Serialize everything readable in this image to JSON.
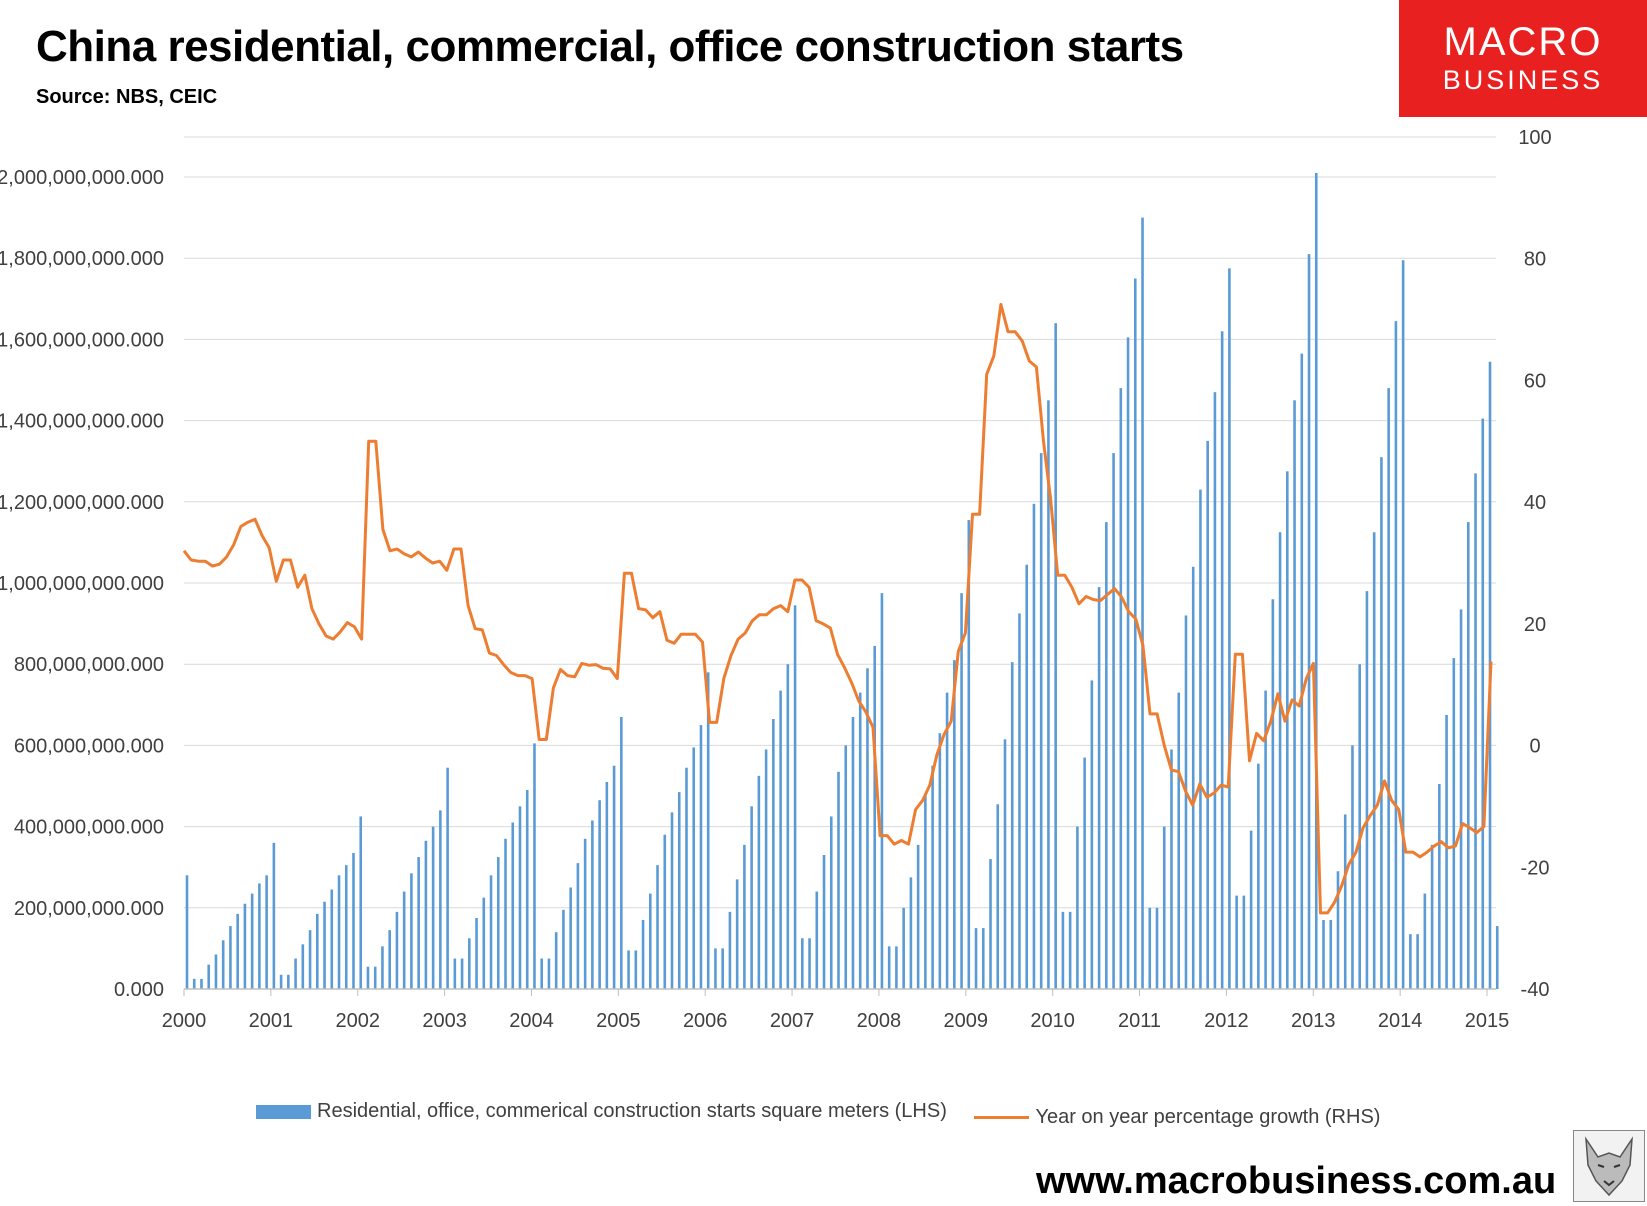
{
  "title": "China residential, commercial, office construction starts",
  "source": "Source: NBS, CEIC",
  "logo": {
    "line1": "MACRO",
    "line2": "BUSINESS"
  },
  "website": "www.macrobusiness.com.au",
  "colors": {
    "bars": "#5b9bd5",
    "line": "#ed7d31",
    "grid": "#d9d9d9",
    "logo_bg": "#e8201f"
  },
  "chart_data": {
    "type": "bar+line",
    "title": "China residential, commercial, office construction starts",
    "x_tick_labels": [
      "2000",
      "2001",
      "2002",
      "2003",
      "2004",
      "2005",
      "2006",
      "2007",
      "2008",
      "2009",
      "2010",
      "2011",
      "2012",
      "2013",
      "2014",
      "2015"
    ],
    "left_axis": {
      "label": "square meters",
      "ylim": [
        0,
        2000000000
      ],
      "tick_labels": [
        "0.000",
        "200,000,000.000",
        "400,000,000.000",
        "600,000,000.000",
        "800,000,000.000",
        "1,000,000,000.000",
        "1,200,000,000.000",
        "1,400,000,000.000",
        "1,600,000,000.000",
        "1,800,000,000.000",
        "2,000,000,000.000"
      ]
    },
    "right_axis": {
      "label": "percent",
      "ylim": [
        -40,
        100
      ],
      "tick_labels": [
        "-40",
        "-20",
        "0",
        "20",
        "40",
        "60",
        "80",
        "100"
      ]
    },
    "grid": true,
    "legend_position": "bottom",
    "series": [
      {
        "name": "Residential, office, commerical construction starts square meters (LHS)",
        "type": "bar",
        "axis": "left",
        "start": "2000-01",
        "frequency": "monthly",
        "values_millions": [
          280,
          25,
          25,
          60,
          85,
          120,
          155,
          185,
          210,
          235,
          260,
          280,
          360,
          35,
          35,
          75,
          110,
          145,
          185,
          215,
          245,
          280,
          305,
          335,
          425,
          55,
          55,
          105,
          145,
          190,
          240,
          285,
          325,
          365,
          400,
          440,
          545,
          75,
          75,
          125,
          175,
          225,
          280,
          325,
          370,
          410,
          450,
          490,
          605,
          75,
          75,
          140,
          195,
          250,
          310,
          370,
          415,
          465,
          510,
          550,
          670,
          95,
          95,
          170,
          235,
          305,
          380,
          435,
          485,
          545,
          595,
          650,
          780,
          100,
          100,
          190,
          270,
          355,
          450,
          525,
          590,
          665,
          735,
          800,
          945,
          125,
          125,
          240,
          330,
          425,
          535,
          600,
          670,
          730,
          790,
          845,
          975,
          105,
          105,
          200,
          275,
          355,
          480,
          550,
          630,
          730,
          810,
          975,
          1155,
          150,
          150,
          320,
          455,
          615,
          805,
          925,
          1045,
          1195,
          1320,
          1450,
          1640,
          190,
          190,
          400,
          570,
          760,
          990,
          1150,
          1320,
          1480,
          1605,
          1750,
          1900,
          200,
          200,
          400,
          590,
          730,
          920,
          1040,
          1230,
          1350,
          1470,
          1620,
          1775,
          230,
          230,
          390,
          555,
          735,
          960,
          1125,
          1275,
          1450,
          1565,
          1810,
          2010,
          170,
          170,
          290,
          430,
          600,
          800,
          980,
          1125,
          1310,
          1480,
          1645,
          1795,
          135,
          135,
          235,
          355,
          505,
          675,
          815,
          935,
          1150,
          1270,
          1405,
          1545,
          155
        ]
      },
      {
        "name": "Year on year percentage growth (RHS)",
        "type": "line",
        "axis": "right",
        "start": "2000-01",
        "frequency": "monthly",
        "values": [
          32,
          30.5,
          30.3,
          30.3,
          29.5,
          29.8,
          31,
          33,
          36,
          36.7,
          37.2,
          34.5,
          32.5,
          27,
          30.5,
          30.5,
          26,
          28,
          22.5,
          20,
          18,
          17.5,
          18.7,
          20.2,
          19.5,
          17.5,
          50,
          50,
          35.5,
          32,
          32.3,
          31.5,
          31,
          31.8,
          30.8,
          30,
          30.3,
          28.8,
          32.3,
          32.3,
          23,
          19.2,
          19,
          15.2,
          14.8,
          13.3,
          12,
          11.5,
          11.5,
          11,
          1,
          1,
          9.5,
          12.5,
          11.5,
          11.3,
          13.5,
          13.2,
          13.3,
          12.7,
          12.6,
          11,
          28.3,
          28.3,
          22.5,
          22.3,
          21,
          22,
          17.3,
          16.8,
          18.3,
          18.3,
          18.3,
          17,
          3.8,
          3.8,
          11,
          14.8,
          17.5,
          18.5,
          20.5,
          21.5,
          21.5,
          22.5,
          23,
          22,
          27.2,
          27.2,
          26,
          20.5,
          20,
          19.3,
          15,
          12.8,
          10.3,
          7.3,
          5.5,
          3,
          -14.8,
          -14.8,
          -16.2,
          -15.6,
          -16.2,
          -10.5,
          -9,
          -6.5,
          -1.5,
          1.8,
          4,
          15.5,
          18.5,
          38,
          38,
          61,
          64,
          72.5,
          68,
          68,
          66.5,
          63.2,
          62.2,
          50,
          40.5,
          28,
          28,
          26,
          23.3,
          24.5,
          24,
          23.8,
          24.8,
          25.8,
          24.4,
          22,
          20.8,
          16.5,
          5.2,
          5.2,
          0,
          -4,
          -4.3,
          -7.5,
          -9.8,
          -6.3,
          -8.5,
          -7.8,
          -6.5,
          -6.8,
          15,
          15,
          -2.5,
          2,
          0.8,
          4,
          8.5,
          4,
          7.5,
          6.5,
          11,
          13.5,
          -27.5,
          -27.5,
          -25.7,
          -23,
          -19.5,
          -17.5,
          -13.5,
          -11.5,
          -9.8,
          -5.8,
          -9,
          -10.5,
          -17.5,
          -17.5,
          -18.3,
          -17.5,
          -16.5,
          -15.8,
          -16.8,
          -16.5,
          -12.8,
          -13.5,
          -14.3,
          -13.3,
          13.8
        ]
      }
    ]
  }
}
